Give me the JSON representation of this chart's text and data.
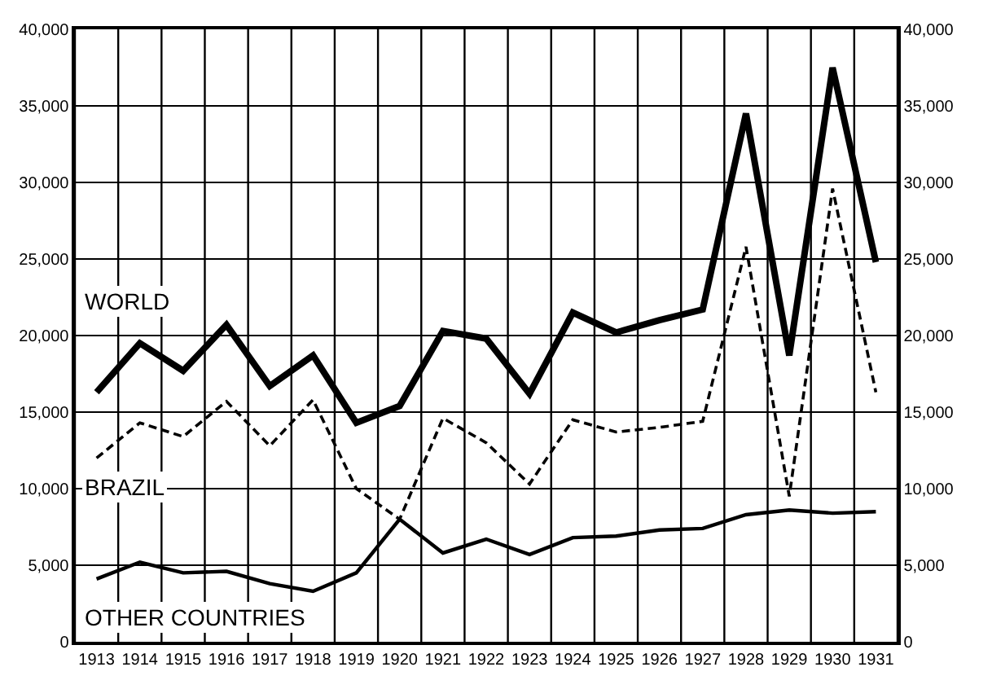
{
  "chart_data": {
    "type": "line",
    "categories": [
      "1913",
      "1914",
      "1915",
      "1916",
      "1917",
      "1918",
      "1919",
      "1920",
      "1921",
      "1922",
      "1923",
      "1924",
      "1925",
      "1926",
      "1927",
      "1928",
      "1929",
      "1930",
      "1931"
    ],
    "series": [
      {
        "name": "WORLD",
        "color": "#000000",
        "line_style": "solid",
        "values": [
          16300,
          19500,
          17700,
          20700,
          16700,
          18700,
          14300,
          15400,
          20300,
          19800,
          16200,
          21500,
          20200,
          21000,
          21700,
          34500,
          18700,
          37500,
          24800
        ]
      },
      {
        "name": "BRAZIL",
        "color": "#000000",
        "line_style": "dashed",
        "values": [
          12000,
          14300,
          13400,
          15700,
          12800,
          15800,
          10000,
          8000,
          14600,
          13000,
          10300,
          14500,
          13700,
          14000,
          14400,
          25800,
          9500,
          29600,
          16300
        ]
      },
      {
        "name": "OTHER COUNTRIES",
        "color": "#000000",
        "line_style": "solid",
        "values": [
          4100,
          5200,
          4500,
          4600,
          3800,
          3300,
          4500,
          8000,
          5800,
          6700,
          5700,
          6800,
          6900,
          7300,
          7400,
          8300,
          8600,
          8400,
          8500
        ]
      }
    ],
    "ylim": [
      0,
      40000
    ],
    "yticks": [
      0,
      {
        "value": 5000,
        "label": "5,000"
      },
      {
        "value": 10000,
        "label": "10,000"
      },
      {
        "value": 15000,
        "label": "15,000"
      },
      {
        "value": 20000,
        "label": "20,000"
      },
      {
        "value": 25000,
        "label": "25,000"
      },
      {
        "value": 30000,
        "label": "30,000"
      },
      {
        "value": 35000,
        "label": "35,000"
      },
      {
        "value": 40000,
        "label": "40,000"
      }
    ],
    "y2lim": [
      0,
      40000
    ],
    "y2ticks": [
      0,
      {
        "value": 5000,
        "label": "5,000"
      },
      {
        "value": 10000,
        "label": "10,000"
      },
      {
        "value": 15000,
        "label": "15,000"
      },
      {
        "value": 20000,
        "label": "20,000"
      },
      {
        "value": 25000,
        "label": "25,000"
      },
      {
        "value": 30000,
        "label": "30,000"
      },
      {
        "value": 35000,
        "label": "35,000"
      },
      {
        "value": 40000,
        "label": "40,000"
      }
    ],
    "grid": true,
    "legend": false,
    "marker": "none"
  }
}
